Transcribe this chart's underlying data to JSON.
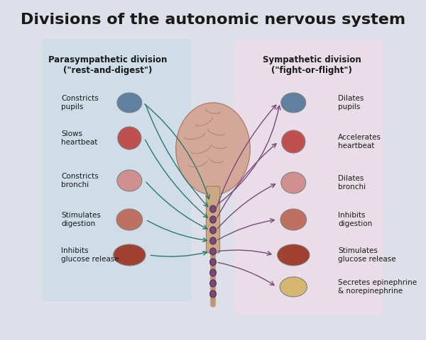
{
  "title": "Divisions of the autonomic nervous system",
  "title_fontsize": 16,
  "bg_color": "#dde0e8",
  "para_box_color": "#ccdde8",
  "symp_box_color": "#ecdde8",
  "para_title": "Parasympathetic division\n(\"rest-and-digest\")",
  "symp_title": "Sympathetic division\n(\"fight-or-flight\")",
  "para_labels": [
    "Constricts\npupils",
    "Slows\nheartbeat",
    "Constricts\nbronchi",
    "Stimulates\ndigestion",
    "Inhibits\nglucose release"
  ],
  "symp_labels": [
    "Dilates\npupils",
    "Accelerates\nheartbeat",
    "Dilates\nbronchi",
    "Inhibits\ndigestion",
    "Stimulates\nglucose release",
    "Secretes epinephrine\n& norepinephrine"
  ],
  "para_line_color": "#2a7a6a",
  "symp_line_color": "#7a4a7a",
  "spine_color": "#7a4a7a",
  "organ_colors": [
    "#c8b8b0",
    "#c05050",
    "#d08080",
    "#c07060",
    "#a04030"
  ]
}
